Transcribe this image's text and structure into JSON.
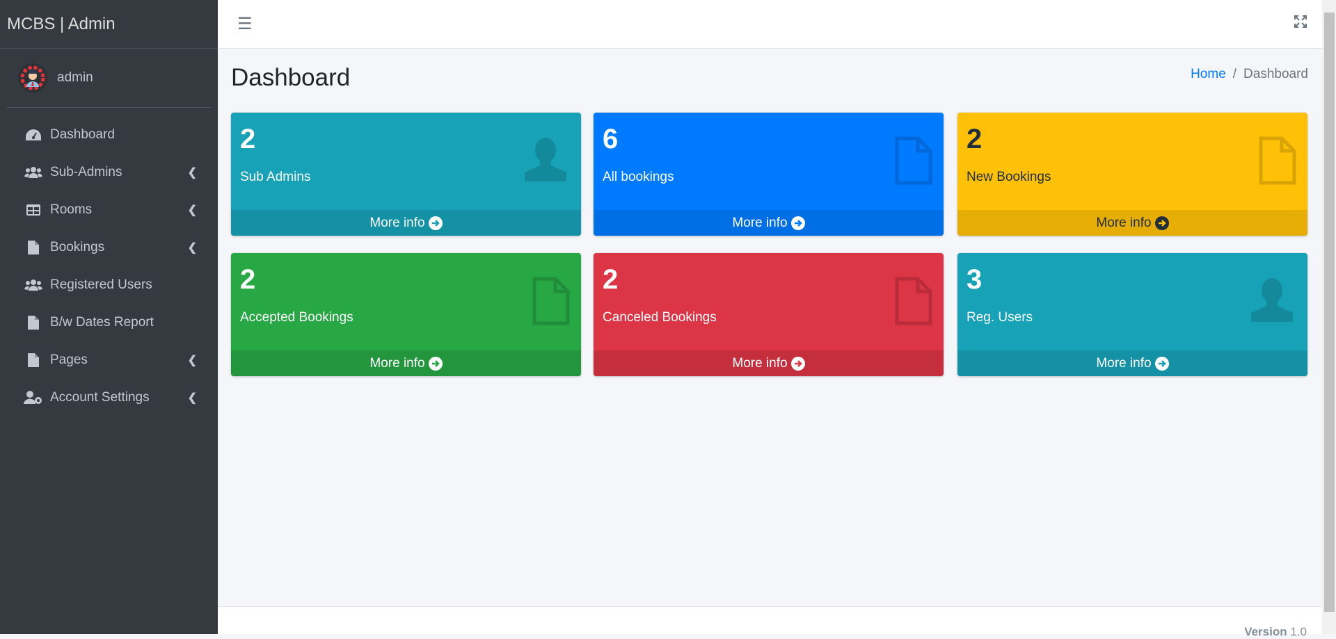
{
  "brand": "MCBS | Admin",
  "user": {
    "name": "admin"
  },
  "sidebar": {
    "items": [
      {
        "label": "Dashboard",
        "icon": "tachometer-icon",
        "chevron": false
      },
      {
        "label": "Sub-Admins",
        "icon": "users-icon",
        "chevron": true
      },
      {
        "label": "Rooms",
        "icon": "table-icon",
        "chevron": true
      },
      {
        "label": "Bookings",
        "icon": "file-icon",
        "chevron": true
      },
      {
        "label": "Registered Users",
        "icon": "users-icon",
        "chevron": false
      },
      {
        "label": "B/w Dates Report",
        "icon": "file-icon",
        "chevron": false
      },
      {
        "label": "Pages",
        "icon": "file-icon",
        "chevron": true
      },
      {
        "label": "Account Settings",
        "icon": "user-cog-icon",
        "chevron": true
      }
    ]
  },
  "header": {
    "title": "Dashboard",
    "breadcrumb": {
      "home": "Home",
      "sep": "/",
      "current": "Dashboard"
    }
  },
  "cards": [
    {
      "value": "2",
      "label": "Sub Admins",
      "link": "More info",
      "icon": "user-icon",
      "color": "#17a2b8"
    },
    {
      "value": "6",
      "label": "All bookings",
      "link": "More info",
      "icon": "file-icon",
      "color": "#007bff"
    },
    {
      "value": "2",
      "label": "New Bookings",
      "link": "More info",
      "icon": "file-icon",
      "color": "#ffc107"
    },
    {
      "value": "2",
      "label": "Accepted Bookings",
      "link": "More info",
      "icon": "file-icon",
      "color": "#28a745"
    },
    {
      "value": "2",
      "label": "Canceled Bookings",
      "link": "More info",
      "icon": "file-icon",
      "color": "#dc3545"
    },
    {
      "value": "3",
      "label": "Reg. Users",
      "link": "More info",
      "icon": "user-icon",
      "color": "#17a2b8"
    }
  ],
  "footer": {
    "version_label": "Version",
    "version": "1.0"
  }
}
